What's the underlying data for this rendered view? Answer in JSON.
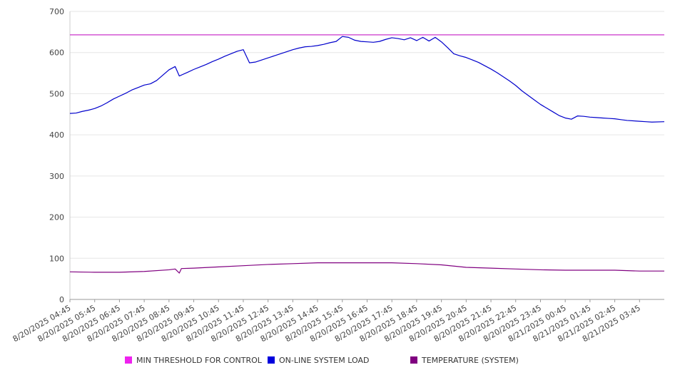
{
  "chart_data": {
    "type": "line",
    "ylim": [
      0,
      700
    ],
    "y_ticks": [
      0,
      100,
      200,
      300,
      400,
      500,
      600,
      700
    ],
    "x_tick_labels": [
      "8/20/2025 04:45",
      "8/20/2025 05:45",
      "8/20/2025 06:45",
      "8/20/2025 07:45",
      "8/20/2025 08:45",
      "8/20/2025 09:45",
      "8/20/2025 10:45",
      "8/20/2025 11:45",
      "8/20/2025 12:45",
      "8/20/2025 13:45",
      "8/20/2025 14:45",
      "8/20/2025 15:45",
      "8/20/2025 16:45",
      "8/20/2025 17:45",
      "8/20/2025 18:45",
      "8/20/2025 19:45",
      "8/20/2025 20:45",
      "8/20/2025 21:45",
      "8/20/2025 22:45",
      "8/20/2025 23:45",
      "8/21/2025 00:45",
      "8/21/2025 01:45",
      "8/21/2025 02:45",
      "8/21/2025 03:45"
    ],
    "grid": true,
    "legend_position": "bottom",
    "series": [
      {
        "name": "MIN THRESHOLD FOR CONTROL",
        "color": "#cc33cc",
        "points": [
          [
            "8/20/2025 04:45",
            643
          ],
          [
            "8/21/2025 04:45",
            643
          ]
        ]
      },
      {
        "name": "ON-LINE SYSTEM LOAD",
        "color": "#0000cc",
        "points": [
          [
            "8/20/2025 04:45",
            452
          ],
          [
            "8/20/2025 05:00",
            453
          ],
          [
            "8/20/2025 05:15",
            457
          ],
          [
            "8/20/2025 05:30",
            460
          ],
          [
            "8/20/2025 05:45",
            464
          ],
          [
            "8/20/2025 06:00",
            470
          ],
          [
            "8/20/2025 06:15",
            478
          ],
          [
            "8/20/2025 06:30",
            487
          ],
          [
            "8/20/2025 06:45",
            494
          ],
          [
            "8/20/2025 07:00",
            501
          ],
          [
            "8/20/2025 07:15",
            509
          ],
          [
            "8/20/2025 07:30",
            515
          ],
          [
            "8/20/2025 07:45",
            521
          ],
          [
            "8/20/2025 08:00",
            524
          ],
          [
            "8/20/2025 08:15",
            532
          ],
          [
            "8/20/2025 08:30",
            545
          ],
          [
            "8/20/2025 08:45",
            558
          ],
          [
            "8/20/2025 09:00",
            566
          ],
          [
            "8/20/2025 09:10",
            543
          ],
          [
            "8/20/2025 09:30",
            552
          ],
          [
            "8/20/2025 09:45",
            559
          ],
          [
            "8/20/2025 10:00",
            565
          ],
          [
            "8/20/2025 10:15",
            571
          ],
          [
            "8/20/2025 10:30",
            578
          ],
          [
            "8/20/2025 10:45",
            584
          ],
          [
            "8/20/2025 11:00",
            591
          ],
          [
            "8/20/2025 11:15",
            597
          ],
          [
            "8/20/2025 11:30",
            603
          ],
          [
            "8/20/2025 11:45",
            607
          ],
          [
            "8/20/2025 12:00",
            575
          ],
          [
            "8/20/2025 12:15",
            577
          ],
          [
            "8/20/2025 12:30",
            582
          ],
          [
            "8/20/2025 12:45",
            587
          ],
          [
            "8/20/2025 13:00",
            592
          ],
          [
            "8/20/2025 13:15",
            597
          ],
          [
            "8/20/2025 13:30",
            602
          ],
          [
            "8/20/2025 13:45",
            607
          ],
          [
            "8/20/2025 14:00",
            611
          ],
          [
            "8/20/2025 14:15",
            614
          ],
          [
            "8/20/2025 14:30",
            615
          ],
          [
            "8/20/2025 14:45",
            617
          ],
          [
            "8/20/2025 15:00",
            620
          ],
          [
            "8/20/2025 15:15",
            624
          ],
          [
            "8/20/2025 15:30",
            627
          ],
          [
            "8/20/2025 15:45",
            639
          ],
          [
            "8/20/2025 16:00",
            637
          ],
          [
            "8/20/2025 16:15",
            630
          ],
          [
            "8/20/2025 16:30",
            627
          ],
          [
            "8/20/2025 16:45",
            626
          ],
          [
            "8/20/2025 17:00",
            625
          ],
          [
            "8/20/2025 17:15",
            627
          ],
          [
            "8/20/2025 17:30",
            632
          ],
          [
            "8/20/2025 17:45",
            636
          ],
          [
            "8/20/2025 18:00",
            634
          ],
          [
            "8/20/2025 18:15",
            631
          ],
          [
            "8/20/2025 18:30",
            636
          ],
          [
            "8/20/2025 18:45",
            629
          ],
          [
            "8/20/2025 19:00",
            637
          ],
          [
            "8/20/2025 19:15",
            628
          ],
          [
            "8/20/2025 19:30",
            637
          ],
          [
            "8/20/2025 19:45",
            626
          ],
          [
            "8/20/2025 20:00",
            612
          ],
          [
            "8/20/2025 20:15",
            597
          ],
          [
            "8/20/2025 20:30",
            592
          ],
          [
            "8/20/2025 20:45",
            588
          ],
          [
            "8/20/2025 21:00",
            582
          ],
          [
            "8/20/2025 21:15",
            576
          ],
          [
            "8/20/2025 21:30",
            568
          ],
          [
            "8/20/2025 21:45",
            560
          ],
          [
            "8/20/2025 22:00",
            551
          ],
          [
            "8/20/2025 22:15",
            541
          ],
          [
            "8/20/2025 22:30",
            531
          ],
          [
            "8/20/2025 22:45",
            520
          ],
          [
            "8/20/2025 23:00",
            507
          ],
          [
            "8/20/2025 23:15",
            496
          ],
          [
            "8/20/2025 23:30",
            485
          ],
          [
            "8/20/2025 23:45",
            474
          ],
          [
            "8/21/2025 00:00",
            465
          ],
          [
            "8/21/2025 00:15",
            456
          ],
          [
            "8/21/2025 00:30",
            447
          ],
          [
            "8/21/2025 00:45",
            441
          ],
          [
            "8/21/2025 01:00",
            438
          ],
          [
            "8/21/2025 01:15",
            446
          ],
          [
            "8/21/2025 01:30",
            445
          ],
          [
            "8/21/2025 01:45",
            443
          ],
          [
            "8/21/2025 02:00",
            442
          ],
          [
            "8/21/2025 02:15",
            441
          ],
          [
            "8/21/2025 02:30",
            440
          ],
          [
            "8/21/2025 02:45",
            439
          ],
          [
            "8/21/2025 03:00",
            437
          ],
          [
            "8/21/2025 03:15",
            435
          ],
          [
            "8/21/2025 03:30",
            434
          ],
          [
            "8/21/2025 03:45",
            433
          ],
          [
            "8/21/2025 04:00",
            432
          ],
          [
            "8/21/2025 04:15",
            431
          ],
          [
            "8/21/2025 04:45",
            432
          ]
        ]
      },
      {
        "name": "TEMPERATURE (SYSTEM)",
        "color": "#800080",
        "points": [
          [
            "8/20/2025 04:45",
            67
          ],
          [
            "8/20/2025 05:45",
            66
          ],
          [
            "8/20/2025 06:45",
            66
          ],
          [
            "8/20/2025 07:45",
            68
          ],
          [
            "8/20/2025 08:45",
            72
          ],
          [
            "8/20/2025 09:00",
            74
          ],
          [
            "8/20/2025 09:10",
            64
          ],
          [
            "8/20/2025 09:15",
            75
          ],
          [
            "8/20/2025 09:45",
            76
          ],
          [
            "8/20/2025 10:45",
            79
          ],
          [
            "8/20/2025 11:45",
            82
          ],
          [
            "8/20/2025 12:45",
            85
          ],
          [
            "8/20/2025 13:45",
            87
          ],
          [
            "8/20/2025 14:45",
            89
          ],
          [
            "8/20/2025 15:45",
            89
          ],
          [
            "8/20/2025 16:45",
            89
          ],
          [
            "8/20/2025 17:45",
            89
          ],
          [
            "8/20/2025 18:45",
            87
          ],
          [
            "8/20/2025 19:45",
            84
          ],
          [
            "8/20/2025 20:45",
            78
          ],
          [
            "8/20/2025 21:45",
            76
          ],
          [
            "8/20/2025 22:45",
            74
          ],
          [
            "8/20/2025 23:45",
            72
          ],
          [
            "8/21/2025 00:45",
            71
          ],
          [
            "8/21/2025 01:45",
            71
          ],
          [
            "8/21/2025 02:45",
            71
          ],
          [
            "8/21/2025 03:45",
            69
          ],
          [
            "8/21/2025 04:45",
            69
          ]
        ]
      }
    ]
  }
}
